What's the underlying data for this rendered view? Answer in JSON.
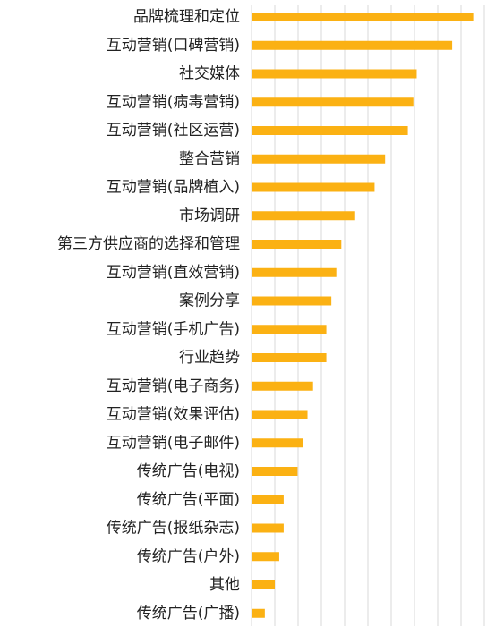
{
  "chart_data": {
    "type": "bar",
    "orientation": "horizontal",
    "title": "",
    "xlabel": "",
    "ylabel": "",
    "categories": [
      "品牌梳理和定位",
      "互动营销(口碑营销)",
      "社交媒体",
      "互动营销(病毒营销)",
      "互动营销(社区运营)",
      "整合营销",
      "互动营销(品牌植入)",
      "市场调研",
      "第三方供应商的选择和管理",
      "互动营销(直效营销)",
      "案例分享",
      "互动营销(手机广告)",
      "行业趋势",
      "互动营销(电子商务)",
      "互动营销(效果评估)",
      "互动营销(电子邮件)",
      "传统广告(电视)",
      "传统广告(平面)",
      "传统广告(报纸杂志)",
      "传统广告(户外)",
      "其他",
      "传统广告(广播)"
    ],
    "values": [
      40,
      36.2,
      29.8,
      29.2,
      28.2,
      24.1,
      22.2,
      18.7,
      16.2,
      15.3,
      14.4,
      13.5,
      13.5,
      11.1,
      10.1,
      9.3,
      8.3,
      5.8,
      5.8,
      5.0,
      4.2,
      2.4
    ],
    "xlim": [
      0,
      42
    ],
    "gridlines": true,
    "legend": "none",
    "bar_color": "#FBB113",
    "grid_color": "#D9D9D9",
    "label_color": "#222222"
  }
}
